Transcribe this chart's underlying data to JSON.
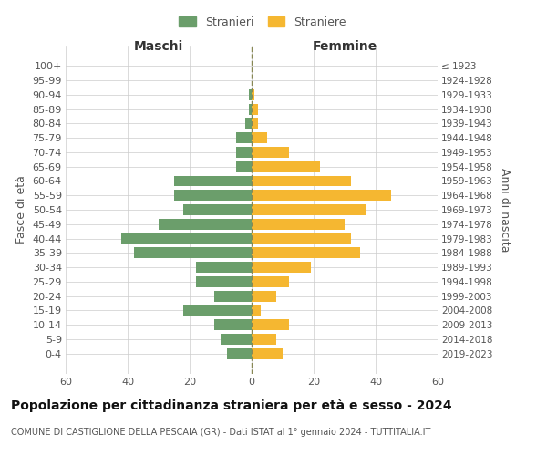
{
  "age_groups": [
    "100+",
    "95-99",
    "90-94",
    "85-89",
    "80-84",
    "75-79",
    "70-74",
    "65-69",
    "60-64",
    "55-59",
    "50-54",
    "45-49",
    "40-44",
    "35-39",
    "30-34",
    "25-29",
    "20-24",
    "15-19",
    "10-14",
    "5-9",
    "0-4"
  ],
  "birth_years": [
    "≤ 1923",
    "1924-1928",
    "1929-1933",
    "1934-1938",
    "1939-1943",
    "1944-1948",
    "1949-1953",
    "1954-1958",
    "1959-1963",
    "1964-1968",
    "1969-1973",
    "1974-1978",
    "1979-1983",
    "1984-1988",
    "1989-1993",
    "1994-1998",
    "1999-2003",
    "2004-2008",
    "2009-2013",
    "2014-2018",
    "2019-2023"
  ],
  "males": [
    0,
    0,
    1,
    1,
    2,
    5,
    5,
    5,
    25,
    25,
    22,
    30,
    42,
    38,
    18,
    18,
    12,
    22,
    12,
    10,
    8
  ],
  "females": [
    0,
    0,
    1,
    2,
    2,
    5,
    12,
    22,
    32,
    45,
    37,
    30,
    32,
    35,
    19,
    12,
    8,
    3,
    12,
    8,
    10
  ],
  "male_color": "#6b9e6b",
  "female_color": "#f5b731",
  "dashed_line_color": "#888855",
  "background_color": "#ffffff",
  "grid_color": "#cccccc",
  "title": "Popolazione per cittadinanza straniera per età e sesso - 2024",
  "subtitle": "COMUNE DI CASTIGLIONE DELLA PESCAIA (GR) - Dati ISTAT al 1° gennaio 2024 - TUTTITALIA.IT",
  "xlabel_left": "Maschi",
  "xlabel_right": "Femmine",
  "ylabel_left": "Fasce di età",
  "ylabel_right": "Anni di nascita",
  "legend_male": "Stranieri",
  "legend_female": "Straniere",
  "xlim": 60,
  "title_fontsize": 10,
  "subtitle_fontsize": 7,
  "label_fontsize": 9,
  "tick_fontsize": 8
}
